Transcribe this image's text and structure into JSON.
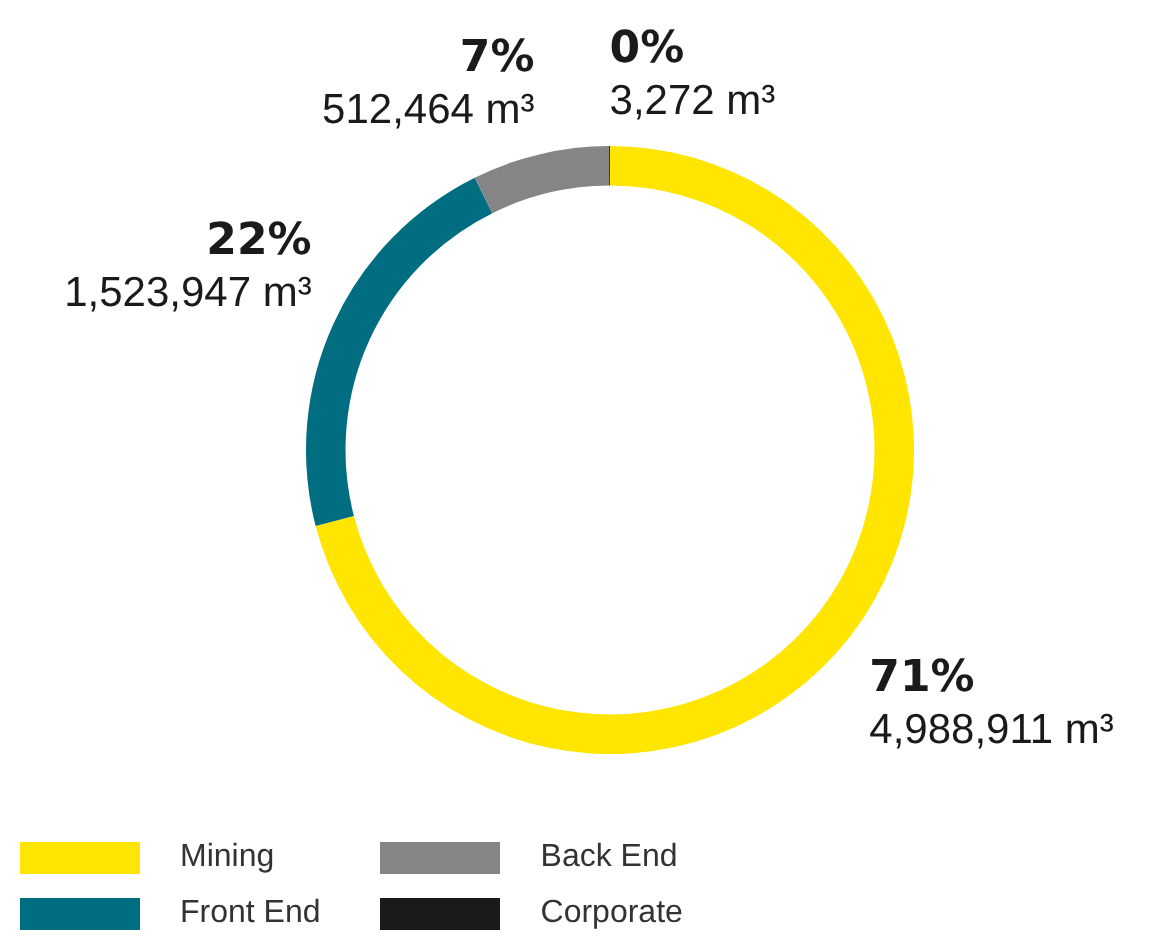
{
  "chart_data": {
    "type": "donut",
    "categories": [
      "Mining",
      "Front End",
      "Back End",
      "Corporate"
    ],
    "values": [
      4988911,
      1523947,
      512464,
      3272
    ],
    "colors": [
      "#ffe500",
      "#006d80",
      "#858585",
      "#1a1a1a"
    ],
    "value_labels": [
      "71%\n4,988,911 m³",
      "22%\n1,523,947 m³",
      "7%\n512,464 m³",
      "0%\n3,272 m³"
    ],
    "legend": "bottom left"
  }
}
